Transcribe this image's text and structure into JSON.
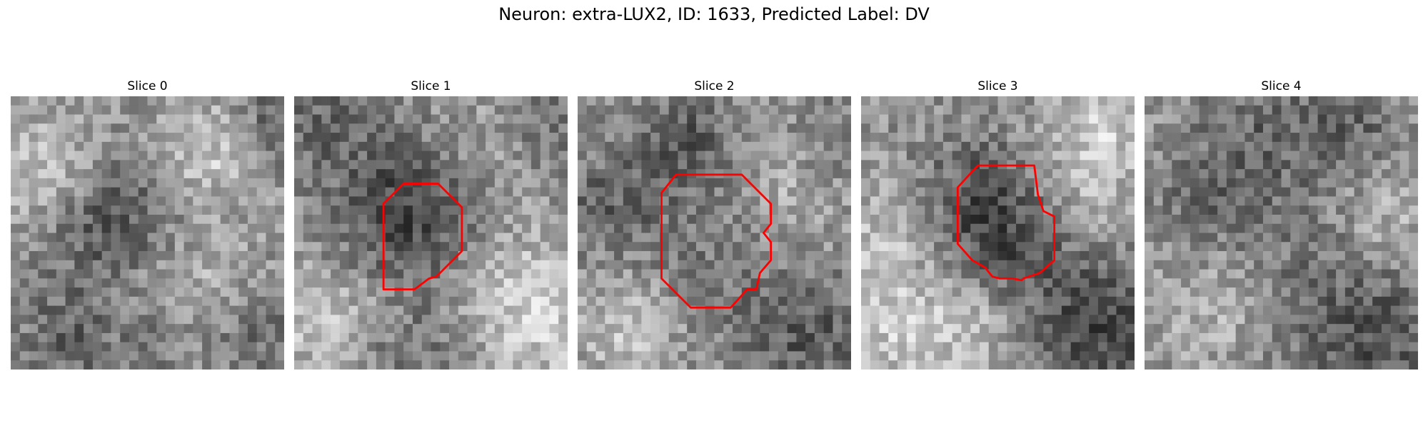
{
  "figure": {
    "title": "Neuron: extra-LUX2, ID: 1633, Predicted Label: DV"
  },
  "colors": {
    "contour": "#ff0000",
    "background": "#ffffff"
  },
  "slices": [
    {
      "label": "Slice 0",
      "has_contour": false
    },
    {
      "label": "Slice 1",
      "has_contour": true
    },
    {
      "label": "Slice 2",
      "has_contour": true
    },
    {
      "label": "Slice 3",
      "has_contour": true
    },
    {
      "label": "Slice 4",
      "has_contour": false
    }
  ]
}
